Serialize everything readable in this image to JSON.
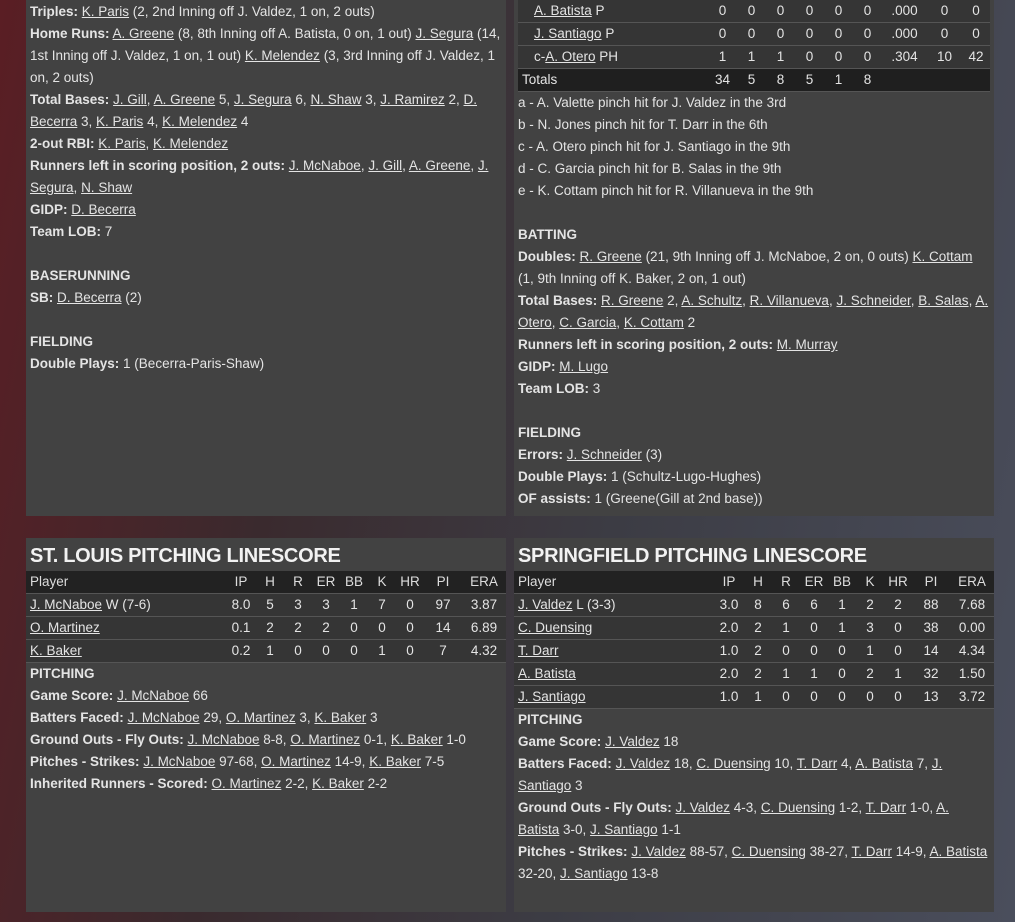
{
  "st_louis_batting": {
    "lines": [
      {
        "label": "Triples:",
        "segs": [
          {
            "t": "K. Paris",
            "l": true
          },
          {
            "t": " (2, 2nd Inning off J. Valdez, 1 on, 2 outs)"
          }
        ]
      },
      {
        "label": "Home Runs:",
        "segs": [
          {
            "t": "A. Greene",
            "l": true
          },
          {
            "t": " (8, 8th Inning off A. Batista, 0 on, 1 out) "
          },
          {
            "t": "J. Segura",
            "l": true
          },
          {
            "t": " (14, 1st Inning off J. Valdez, 1 on, 1 out) "
          },
          {
            "t": "K. Melendez",
            "l": true
          },
          {
            "t": " (3, 3rd Inning off J. Valdez, 1 on, 2 outs)"
          }
        ]
      },
      {
        "label": "Total Bases:",
        "segs": [
          {
            "t": "J. Gill",
            "l": true
          },
          {
            "t": ", "
          },
          {
            "t": "A. Greene",
            "l": true
          },
          {
            "t": " 5, "
          },
          {
            "t": "J. Segura",
            "l": true
          },
          {
            "t": " 6, "
          },
          {
            "t": "N. Shaw",
            "l": true
          },
          {
            "t": " 3, "
          },
          {
            "t": "J. Ramirez",
            "l": true
          },
          {
            "t": " 2, "
          },
          {
            "t": "D. Becerra",
            "l": true
          },
          {
            "t": " 3, "
          },
          {
            "t": "K. Paris",
            "l": true
          },
          {
            "t": " 4, "
          },
          {
            "t": "K. Melendez",
            "l": true
          },
          {
            "t": " 4"
          }
        ]
      },
      {
        "label": "2-out RBI:",
        "segs": [
          {
            "t": "K. Paris",
            "l": true
          },
          {
            "t": ", "
          },
          {
            "t": "K. Melendez",
            "l": true
          }
        ]
      },
      {
        "label": "Runners left in scoring position, 2 outs:",
        "segs": [
          {
            "t": "J. McNaboe",
            "l": true
          },
          {
            "t": ", "
          },
          {
            "t": "J. Gill",
            "l": true
          },
          {
            "t": ", "
          },
          {
            "t": "A. Greene",
            "l": true
          },
          {
            "t": ", "
          },
          {
            "t": "J. Segura",
            "l": true
          },
          {
            "t": ", "
          },
          {
            "t": "N. Shaw",
            "l": true
          }
        ]
      },
      {
        "label": "GIDP:",
        "segs": [
          {
            "t": "D. Becerra",
            "l": true
          }
        ]
      },
      {
        "label": "Team LOB:",
        "segs": [
          {
            "t": "7"
          }
        ]
      },
      {
        "blank": true
      },
      {
        "heading": "BASERUNNING"
      },
      {
        "label": "SB:",
        "segs": [
          {
            "t": "D. Becerra",
            "l": true
          },
          {
            "t": " (2)"
          }
        ]
      },
      {
        "blank": true
      },
      {
        "heading": "FIELDING"
      },
      {
        "label": "Double Plays:",
        "segs": [
          {
            "t": "1 (Becerra-Paris-Shaw)"
          }
        ]
      }
    ]
  },
  "springfield_batting": {
    "rows": [
      {
        "prefix": "",
        "name": "A. Batista",
        "pos": "P",
        "stats": [
          "0",
          "0",
          "0",
          "0",
          "0",
          "0",
          ".000",
          "0",
          "0"
        ]
      },
      {
        "prefix": "",
        "name": "J. Santiago",
        "pos": "P",
        "stats": [
          "0",
          "0",
          "0",
          "0",
          "0",
          "0",
          ".000",
          "0",
          "0"
        ]
      },
      {
        "prefix": "c-",
        "name": "A. Otero",
        "pos": "PH",
        "stats": [
          "1",
          "1",
          "1",
          "0",
          "0",
          "0",
          ".304",
          "10",
          "42"
        ]
      }
    ],
    "totals": {
      "label": "Totals",
      "stats": [
        "34",
        "5",
        "8",
        "5",
        "1",
        "8",
        "",
        "",
        ""
      ]
    },
    "footnotes": [
      "a - A. Valette pinch hit for J. Valdez in the 3rd",
      "b - N. Jones pinch hit for T. Darr in the 6th",
      "c - A. Otero pinch hit for J. Santiago in the 9th",
      "d - C. Garcia pinch hit for B. Salas in the 9th",
      "e - K. Cottam pinch hit for R. Villanueva in the 9th"
    ],
    "lines": [
      {
        "blank": true
      },
      {
        "heading": "BATTING"
      },
      {
        "label": "Doubles:",
        "segs": [
          {
            "t": "R. Greene",
            "l": true
          },
          {
            "t": " (21, 9th Inning off J. McNaboe, 2 on, 0 outs) "
          },
          {
            "t": "K. Cottam",
            "l": true
          },
          {
            "t": " (1, 9th Inning off K. Baker, 2 on, 1 out)"
          }
        ]
      },
      {
        "label": "Total Bases:",
        "segs": [
          {
            "t": "R. Greene",
            "l": true
          },
          {
            "t": " 2, "
          },
          {
            "t": "A. Schultz",
            "l": true
          },
          {
            "t": ", "
          },
          {
            "t": "R. Villanueva",
            "l": true
          },
          {
            "t": ", "
          },
          {
            "t": "J. Schneider",
            "l": true
          },
          {
            "t": ", "
          },
          {
            "t": "B. Salas",
            "l": true
          },
          {
            "t": ", "
          },
          {
            "t": "A. Otero",
            "l": true
          },
          {
            "t": ", "
          },
          {
            "t": "C. Garcia",
            "l": true
          },
          {
            "t": ", "
          },
          {
            "t": "K. Cottam",
            "l": true
          },
          {
            "t": " 2"
          }
        ]
      },
      {
        "label": "Runners left in scoring position, 2 outs:",
        "segs": [
          {
            "t": "M. Murray",
            "l": true
          }
        ]
      },
      {
        "label": "GIDP:",
        "segs": [
          {
            "t": "M. Lugo",
            "l": true
          }
        ]
      },
      {
        "label": "Team LOB:",
        "segs": [
          {
            "t": "3"
          }
        ]
      },
      {
        "blank": true
      },
      {
        "heading": "FIELDING"
      },
      {
        "label": "Errors:",
        "segs": [
          {
            "t": "J. Schneider",
            "l": true
          },
          {
            "t": " (3)"
          }
        ]
      },
      {
        "label": "Double Plays:",
        "segs": [
          {
            "t": "1 (Schultz-Lugo-Hughes)"
          }
        ]
      },
      {
        "label": "OF assists:",
        "segs": [
          {
            "t": "1 (Greene(Gill at 2nd base))"
          }
        ]
      }
    ]
  },
  "st_louis_pitching": {
    "title": "ST. LOUIS PITCHING LINESCORE",
    "columns": [
      "Player",
      "IP",
      "H",
      "R",
      "ER",
      "BB",
      "K",
      "HR",
      "PI",
      "ERA"
    ],
    "rows": [
      {
        "name": "J. McNaboe",
        "note": " W (7-6)",
        "stats": [
          "8.0",
          "5",
          "3",
          "3",
          "1",
          "7",
          "0",
          "97",
          "3.87"
        ]
      },
      {
        "name": "O. Martinez",
        "note": "",
        "stats": [
          "0.1",
          "2",
          "2",
          "2",
          "0",
          "0",
          "0",
          "14",
          "6.89"
        ]
      },
      {
        "name": "K. Baker",
        "note": "",
        "stats": [
          "0.2",
          "1",
          "0",
          "0",
          "0",
          "1",
          "0",
          "7",
          "4.32"
        ]
      }
    ],
    "lines": [
      {
        "heading": "PITCHING"
      },
      {
        "label": "Game Score:",
        "segs": [
          {
            "t": "J. McNaboe",
            "l": true
          },
          {
            "t": " 66"
          }
        ]
      },
      {
        "label": "Batters Faced:",
        "segs": [
          {
            "t": "J. McNaboe",
            "l": true
          },
          {
            "t": " 29, "
          },
          {
            "t": "O. Martinez",
            "l": true
          },
          {
            "t": " 3, "
          },
          {
            "t": "K. Baker",
            "l": true
          },
          {
            "t": " 3"
          }
        ]
      },
      {
        "label": "Ground Outs - Fly Outs:",
        "segs": [
          {
            "t": "J. McNaboe",
            "l": true
          },
          {
            "t": " 8-8, "
          },
          {
            "t": "O. Martinez",
            "l": true
          },
          {
            "t": " 0-1, "
          },
          {
            "t": "K. Baker",
            "l": true
          },
          {
            "t": " 1-0"
          }
        ]
      },
      {
        "label": "Pitches - Strikes:",
        "segs": [
          {
            "t": "J. McNaboe",
            "l": true
          },
          {
            "t": " 97-68, "
          },
          {
            "t": "O. Martinez",
            "l": true
          },
          {
            "t": " 14-9, "
          },
          {
            "t": "K. Baker",
            "l": true
          },
          {
            "t": " 7-5"
          }
        ]
      },
      {
        "label": "Inherited Runners - Scored:",
        "segs": [
          {
            "t": "O. Martinez",
            "l": true
          },
          {
            "t": " 2-2, "
          },
          {
            "t": "K. Baker",
            "l": true
          },
          {
            "t": " 2-2"
          }
        ]
      }
    ]
  },
  "springfield_pitching": {
    "title": "SPRINGFIELD PITCHING LINESCORE",
    "columns": [
      "Player",
      "IP",
      "H",
      "R",
      "ER",
      "BB",
      "K",
      "HR",
      "PI",
      "ERA"
    ],
    "rows": [
      {
        "name": "J. Valdez",
        "note": " L (3-3)",
        "stats": [
          "3.0",
          "8",
          "6",
          "6",
          "1",
          "2",
          "2",
          "88",
          "7.68"
        ]
      },
      {
        "name": "C. Duensing",
        "note": "",
        "stats": [
          "2.0",
          "2",
          "1",
          "0",
          "1",
          "3",
          "0",
          "38",
          "0.00"
        ]
      },
      {
        "name": "T. Darr",
        "note": "",
        "stats": [
          "1.0",
          "2",
          "0",
          "0",
          "0",
          "1",
          "0",
          "14",
          "4.34"
        ]
      },
      {
        "name": "A. Batista",
        "note": "",
        "stats": [
          "2.0",
          "2",
          "1",
          "1",
          "0",
          "2",
          "1",
          "32",
          "1.50"
        ]
      },
      {
        "name": "J. Santiago",
        "note": "",
        "stats": [
          "1.0",
          "1",
          "0",
          "0",
          "0",
          "0",
          "0",
          "13",
          "3.72"
        ]
      }
    ],
    "lines": [
      {
        "heading": "PITCHING"
      },
      {
        "label": "Game Score:",
        "segs": [
          {
            "t": "J. Valdez",
            "l": true
          },
          {
            "t": " 18"
          }
        ]
      },
      {
        "label": "Batters Faced:",
        "segs": [
          {
            "t": "J. Valdez",
            "l": true
          },
          {
            "t": " 18, "
          },
          {
            "t": "C. Duensing",
            "l": true
          },
          {
            "t": " 10, "
          },
          {
            "t": "T. Darr",
            "l": true
          },
          {
            "t": " 4, "
          },
          {
            "t": "A. Batista",
            "l": true
          },
          {
            "t": " 7, "
          },
          {
            "t": "J. Santiago",
            "l": true
          },
          {
            "t": " 3"
          }
        ]
      },
      {
        "label": "Ground Outs - Fly Outs:",
        "segs": [
          {
            "t": "J. Valdez",
            "l": true
          },
          {
            "t": " 4-3, "
          },
          {
            "t": "C. Duensing",
            "l": true
          },
          {
            "t": " 1-2, "
          },
          {
            "t": "T. Darr",
            "l": true
          },
          {
            "t": " 1-0, "
          },
          {
            "t": "A. Batista",
            "l": true
          },
          {
            "t": " 3-0, "
          },
          {
            "t": "J. Santiago",
            "l": true
          },
          {
            "t": " 1-1"
          }
        ]
      },
      {
        "label": "Pitches - Strikes:",
        "segs": [
          {
            "t": "J. Valdez",
            "l": true
          },
          {
            "t": " 88-57, "
          },
          {
            "t": "C. Duensing",
            "l": true
          },
          {
            "t": " 38-27, "
          },
          {
            "t": "T. Darr",
            "l": true
          },
          {
            "t": " 14-9, "
          },
          {
            "t": "A. Batista",
            "l": true
          },
          {
            "t": " 32-20, "
          },
          {
            "t": "J. Santiago",
            "l": true
          },
          {
            "t": " 13-8"
          }
        ]
      }
    ]
  }
}
